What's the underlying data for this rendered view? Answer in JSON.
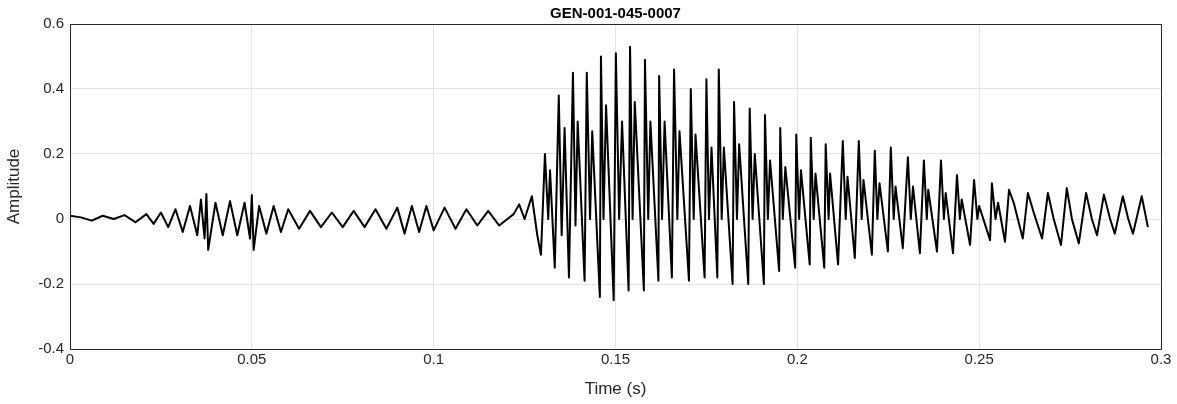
{
  "chart_data": {
    "type": "line",
    "title": "GEN-001-045-0007",
    "xlabel": "Time (s)",
    "ylabel": "Amplitude",
    "color": "#000000",
    "grid": true,
    "xlim": [
      0,
      0.3
    ],
    "xticks": [
      0,
      0.05,
      0.1,
      0.15,
      0.2,
      0.25,
      0.3
    ],
    "ylim": [
      -0.4,
      0.6
    ],
    "yticks": [
      -0.4,
      -0.2,
      0,
      0.2,
      0.4,
      0.6
    ],
    "x": [
      0,
      0.003,
      0.006,
      0.009,
      0.012,
      0.015,
      0.018,
      0.021,
      0.023,
      0.025,
      0.027,
      0.029,
      0.031,
      0.033,
      0.035,
      0.036,
      0.037,
      0.0375,
      0.038,
      0.04,
      0.042,
      0.044,
      0.046,
      0.048,
      0.0495,
      0.05,
      0.0505,
      0.052,
      0.054,
      0.056,
      0.058,
      0.06,
      0.063,
      0.066,
      0.069,
      0.072,
      0.075,
      0.078,
      0.081,
      0.084,
      0.087,
      0.09,
      0.092,
      0.094,
      0.096,
      0.098,
      0.1,
      0.103,
      0.106,
      0.109,
      0.112,
      0.115,
      0.118,
      0.122,
      0.1235,
      0.125,
      0.127,
      0.1285,
      0.1295,
      0.1306,
      0.1315,
      0.132,
      0.1333,
      0.1344,
      0.1352,
      0.136,
      0.1372,
      0.1383,
      0.139,
      0.1396,
      0.1415,
      0.1421,
      0.143,
      0.1436,
      0.1457,
      0.146,
      0.1467,
      0.1474,
      0.1495,
      0.1501,
      0.151,
      0.1518,
      0.1536,
      0.154,
      0.1547,
      0.1553,
      0.1578,
      0.1581,
      0.159,
      0.1596,
      0.1618,
      0.162,
      0.1628,
      0.1635,
      0.1655,
      0.1661,
      0.167,
      0.1676,
      0.1702,
      0.1707,
      0.1715,
      0.172,
      0.1745,
      0.175,
      0.1757,
      0.1764,
      0.178,
      0.1784,
      0.1792,
      0.1798,
      0.1822,
      0.1826,
      0.1834,
      0.184,
      0.1865,
      0.1869,
      0.1877,
      0.1883,
      0.1908,
      0.1911,
      0.1919,
      0.1925,
      0.195,
      0.1953,
      0.196,
      0.1967,
      0.1994,
      0.1997,
      0.2005,
      0.201,
      0.2034,
      0.2037,
      0.2045,
      0.205,
      0.2074,
      0.2078,
      0.2086,
      0.209,
      0.2112,
      0.2125,
      0.2133,
      0.2138,
      0.2158,
      0.2169,
      0.2177,
      0.2182,
      0.2205,
      0.2213,
      0.222,
      0.2226,
      0.2249,
      0.2257,
      0.2265,
      0.227,
      0.229,
      0.2304,
      0.2312,
      0.2318,
      0.2337,
      0.2348,
      0.2356,
      0.236,
      0.2384,
      0.2395,
      0.2403,
      0.2408,
      0.2428,
      0.2439,
      0.2447,
      0.2452,
      0.2475,
      0.2486,
      0.2495,
      0.25,
      0.253,
      0.2535,
      0.2545,
      0.2552,
      0.2571,
      0.2582,
      0.2595,
      0.262,
      0.2634,
      0.265,
      0.2673,
      0.2689,
      0.2705,
      0.2725,
      0.2741,
      0.2755,
      0.2774,
      0.2794,
      0.281,
      0.2824,
      0.2843,
      0.286,
      0.2873,
      0.2895,
      0.291,
      0.2923,
      0.2947,
      0.2964
    ],
    "values": [
      0.01,
      0.005,
      -0.005,
      0.01,
      0,
      0.012,
      -0.01,
      0.015,
      -0.015,
      0.02,
      -0.025,
      0.03,
      -0.04,
      0.04,
      -0.05,
      0.06,
      -0.06,
      0.077,
      -0.095,
      0.05,
      -0.05,
      0.055,
      -0.05,
      0.05,
      -0.06,
      0.074,
      -0.095,
      0.04,
      -0.045,
      0.04,
      -0.04,
      0.03,
      -0.03,
      0.025,
      -0.025,
      0.02,
      -0.025,
      0.025,
      -0.025,
      0.03,
      -0.03,
      0.035,
      -0.045,
      0.04,
      -0.04,
      0.04,
      -0.035,
      0.035,
      -0.03,
      0.03,
      -0.02,
      0.025,
      -0.02,
      0.015,
      0.045,
      0,
      0.07,
      -0.05,
      -0.11,
      0.2,
      0,
      0.15,
      -0.15,
      0.38,
      -0.05,
      0.28,
      -0.18,
      0.45,
      -0.02,
      0.3,
      -0.19,
      0.45,
      0,
      0.27,
      -0.24,
      0.5,
      0,
      0.35,
      -0.25,
      0.51,
      0,
      0.3,
      -0.22,
      0.53,
      0,
      0.36,
      -0.22,
      0.49,
      0,
      0.3,
      -0.19,
      0.44,
      0,
      0.3,
      -0.18,
      0.46,
      0,
      0.27,
      -0.19,
      0.4,
      0,
      0.26,
      -0.18,
      0.43,
      0,
      0.22,
      -0.18,
      0.46,
      0,
      0.22,
      -0.2,
      0.36,
      0,
      0.23,
      -0.2,
      0.34,
      0,
      0.2,
      -0.2,
      0.32,
      0,
      0.18,
      -0.16,
      0.28,
      0,
      0.16,
      -0.15,
      0.26,
      0,
      0.15,
      -0.14,
      0.25,
      0,
      0.14,
      -0.15,
      0.23,
      0,
      0.14,
      -0.14,
      0.24,
      0,
      0.13,
      -0.12,
      0.24,
      0,
      0.12,
      -0.11,
      0.21,
      0,
      0.11,
      -0.1,
      0.22,
      0,
      0.1,
      -0.09,
      0.19,
      0,
      0.1,
      -0.105,
      0.18,
      0,
      0.09,
      -0.1,
      0.18,
      0,
      0.08,
      -0.105,
      0.135,
      0,
      0.06,
      -0.08,
      0.12,
      0,
      0.04,
      -0.065,
      0.11,
      0,
      0.05,
      -0.07,
      0.09,
      0.05,
      -0.06,
      0.08,
      0.02,
      -0.06,
      0.08,
      0,
      -0.08,
      0.095,
      0,
      -0.075,
      0.08,
      0,
      -0.05,
      0.075,
      0,
      -0.045,
      0.07,
      0,
      -0.045,
      0.07,
      -0.025
    ]
  }
}
